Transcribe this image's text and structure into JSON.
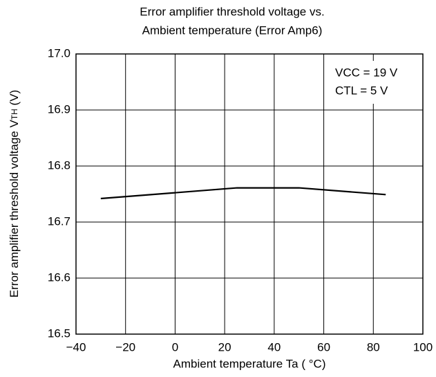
{
  "chart_data": {
    "type": "line",
    "title": [
      "Error amplifier threshold voltage vs.",
      "Ambient temperature (Error Amp6)"
    ],
    "xlabel": "Ambient temperature Ta ( °C)",
    "ylabel": {
      "main": "Error amplifier threshold voltage V",
      "sub": "TH",
      "end": " (V)"
    },
    "annotations": [
      "VCC = 19 V",
      "CTL = 5 V"
    ],
    "x": [
      -30,
      25,
      50,
      85
    ],
    "series": [
      {
        "color": "#000000",
        "values": [
          16.742,
          16.761,
          16.761,
          16.749
        ]
      }
    ],
    "xlim": [
      -40,
      100
    ],
    "xticks": [
      {
        "value": -40,
        "label": "−40"
      },
      {
        "value": -20,
        "label": "−20"
      },
      0,
      20,
      40,
      60,
      80,
      100
    ],
    "ylim": [
      16.5,
      17.0
    ],
    "yticks": [
      16.5,
      16.6,
      16.7,
      16.8,
      16.9,
      {
        "value": 17.0,
        "label": "17.0"
      }
    ],
    "grid": true
  }
}
